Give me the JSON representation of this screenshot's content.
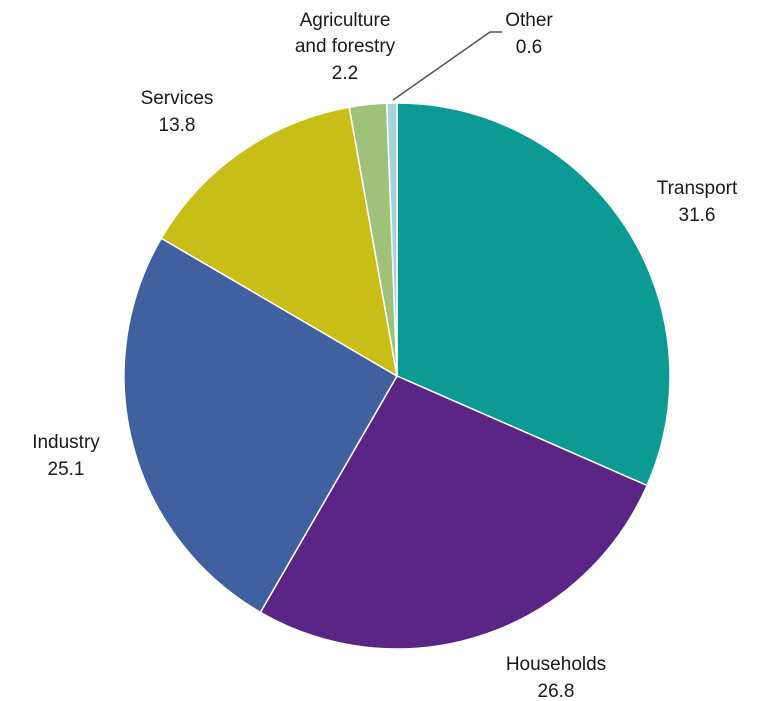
{
  "chart_data": {
    "type": "pie",
    "slices": [
      {
        "name": "Transport",
        "value": 31.6,
        "value_label": "31.6",
        "color": "#0e9a94"
      },
      {
        "name": "Households",
        "value": 26.8,
        "value_label": "26.8",
        "color": "#5a2585"
      },
      {
        "name": "Industry",
        "value": 25.1,
        "value_label": "25.1",
        "color": "#40609f"
      },
      {
        "name": "Services",
        "value": 13.8,
        "value_label": "13.8",
        "color": "#c9bd17"
      },
      {
        "name_lines": [
          "Agriculture",
          "and forestry"
        ],
        "name": "Agriculture and forestry",
        "value": 2.2,
        "value_label": "2.2",
        "color": "#9ec27a"
      },
      {
        "name": "Other",
        "value": 0.6,
        "value_label": "0.6",
        "color": "#a9d2da"
      }
    ],
    "start": "12 o'clock",
    "direction": "clockwise",
    "legend": "none"
  }
}
